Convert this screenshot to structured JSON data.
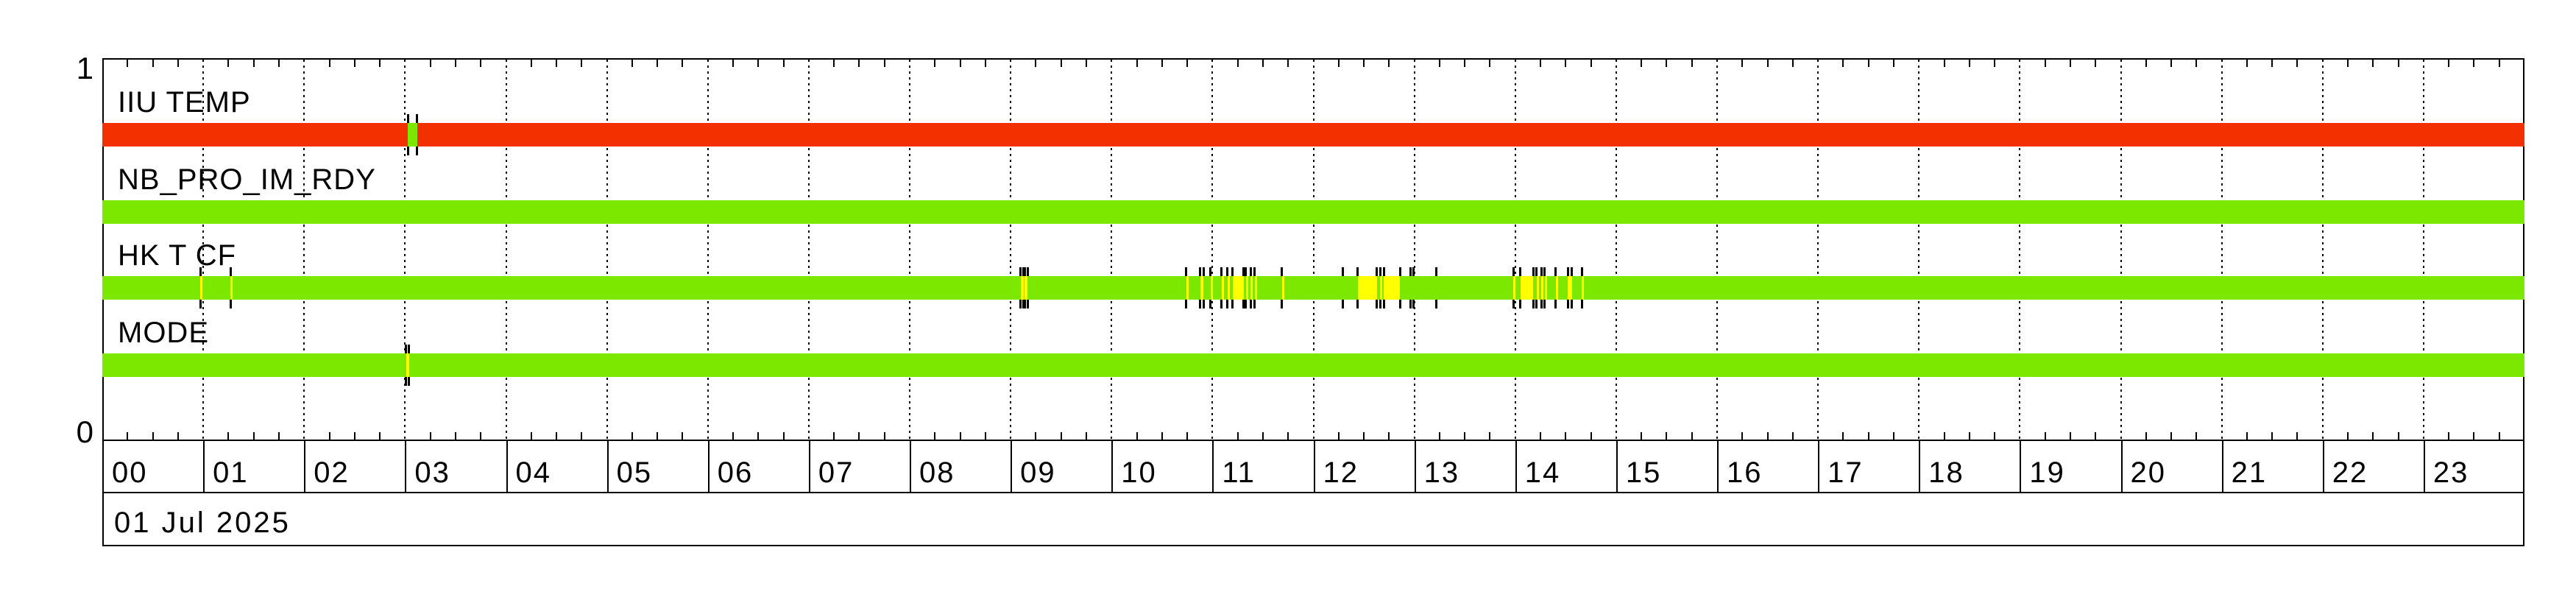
{
  "chart_data": {
    "type": "timeline-status-bars",
    "title": "",
    "date_label": "01 Jul 2025",
    "x_axis": {
      "unit": "hours",
      "start": 0,
      "end": 24,
      "hour_labels": [
        "00",
        "01",
        "02",
        "03",
        "04",
        "05",
        "06",
        "07",
        "08",
        "09",
        "10",
        "11",
        "12",
        "13",
        "14",
        "15",
        "16",
        "17",
        "18",
        "19",
        "20",
        "21",
        "22",
        "23"
      ],
      "minor_tick_minutes": 15,
      "gridlines": "dotted-hourly"
    },
    "y_axis": {
      "top_label": "1",
      "bottom_label": "0",
      "range": [
        0,
        1
      ]
    },
    "status_colors": {
      "green": "#7ce800",
      "red": "#f23000",
      "yellow": "#ffff00"
    },
    "rows": [
      {
        "label": "IIU TEMP",
        "base_color": "red",
        "events": [
          {
            "start_h": 3.03,
            "end_h": 3.12,
            "fill": "green"
          }
        ]
      },
      {
        "label": "NB_PRO_IM_RDY",
        "base_color": "green",
        "events": []
      },
      {
        "label": "HK T CF",
        "base_color": "green",
        "events": [
          {
            "start_h": 0.97,
            "end_h": 0.99,
            "fill": "yellow"
          },
          {
            "start_h": 1.27,
            "end_h": 1.29,
            "fill": "yellow"
          },
          {
            "start_h": 9.1,
            "end_h": 9.13,
            "fill": "yellow"
          },
          {
            "start_h": 9.14,
            "end_h": 9.17,
            "fill": "yellow"
          },
          {
            "start_h": 10.74,
            "end_h": 10.76,
            "fill": "yellow"
          },
          {
            "start_h": 10.88,
            "end_h": 10.91,
            "fill": "yellow"
          },
          {
            "start_h": 10.98,
            "end_h": 11.0,
            "fill": "yellow"
          },
          {
            "start_h": 11.09,
            "end_h": 11.11,
            "fill": "yellow"
          },
          {
            "start_h": 11.15,
            "end_h": 11.17,
            "fill": "yellow"
          },
          {
            "start_h": 11.2,
            "end_h": 11.31,
            "fill": "yellow"
          },
          {
            "start_h": 11.33,
            "end_h": 11.35,
            "fill": "yellow"
          },
          {
            "start_h": 11.38,
            "end_h": 11.4,
            "fill": "yellow"
          },
          {
            "start_h": 11.42,
            "end_h": 11.44,
            "fill": "yellow"
          },
          {
            "start_h": 11.69,
            "end_h": 11.71,
            "fill": "yellow"
          },
          {
            "start_h": 12.29,
            "end_h": 12.31,
            "fill": "none"
          },
          {
            "start_h": 12.44,
            "end_h": 12.63,
            "fill": "yellow"
          },
          {
            "start_h": 12.66,
            "end_h": 12.68,
            "fill": "yellow"
          },
          {
            "start_h": 12.7,
            "end_h": 12.86,
            "fill": "yellow"
          },
          {
            "start_h": 12.96,
            "end_h": 12.99,
            "fill": "none"
          },
          {
            "start_h": 13.22,
            "end_h": 13.24,
            "fill": "none"
          },
          {
            "start_h": 13.98,
            "end_h": 14.0,
            "fill": "yellow"
          },
          {
            "start_h": 14.05,
            "end_h": 14.18,
            "fill": "yellow"
          },
          {
            "start_h": 14.21,
            "end_h": 14.23,
            "fill": "yellow"
          },
          {
            "start_h": 14.26,
            "end_h": 14.28,
            "fill": "yellow"
          },
          {
            "start_h": 14.29,
            "end_h": 14.31,
            "fill": "yellow"
          },
          {
            "start_h": 14.4,
            "end_h": 14.42,
            "fill": "yellow"
          },
          {
            "start_h": 14.52,
            "end_h": 14.56,
            "fill": "yellow"
          },
          {
            "start_h": 14.66,
            "end_h": 14.68,
            "fill": "yellow"
          }
        ]
      },
      {
        "label": "MODE",
        "base_color": "green",
        "events": [
          {
            "start_h": 3.01,
            "end_h": 3.04,
            "fill": "yellow"
          }
        ]
      }
    ]
  }
}
